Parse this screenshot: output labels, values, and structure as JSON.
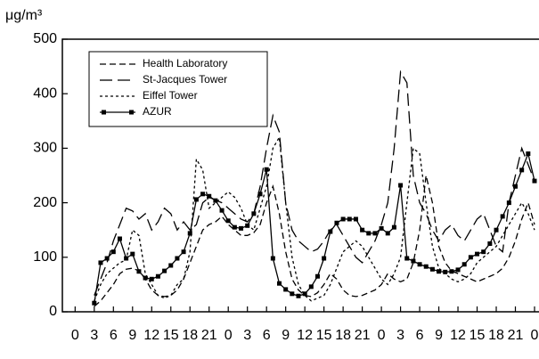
{
  "chart_data": {
    "type": "line",
    "y_label": "μg/m³",
    "x": [
      3,
      4,
      5,
      6,
      7,
      8,
      9,
      10,
      11,
      12,
      13,
      14,
      15,
      16,
      17,
      18,
      19,
      20,
      21,
      22,
      23,
      24,
      25,
      26,
      27,
      28,
      29,
      30,
      31,
      32,
      33,
      34,
      35,
      36,
      37,
      38,
      39,
      40,
      41,
      42,
      43,
      44,
      45,
      46,
      47,
      48,
      49,
      50,
      51,
      52,
      53,
      54,
      55,
      56,
      57,
      58,
      59,
      60,
      61,
      62,
      63,
      64,
      65,
      66,
      67,
      68,
      69,
      70,
      71,
      72
    ],
    "series": [
      {
        "name": "Health Laboratory",
        "color": "#000000",
        "dash": "7,4",
        "marker": false,
        "values": [
          10,
          20,
          35,
          50,
          70,
          78,
          80,
          75,
          60,
          40,
          30,
          28,
          30,
          40,
          60,
          90,
          120,
          150,
          160,
          165,
          175,
          160,
          150,
          140,
          140,
          145,
          160,
          200,
          230,
          180,
          110,
          60,
          40,
          30,
          28,
          35,
          50,
          70,
          60,
          40,
          30,
          28,
          30,
          35,
          40,
          50,
          70,
          60,
          55,
          60,
          90,
          150,
          250,
          200,
          120,
          90,
          75,
          70,
          65,
          60,
          55,
          60,
          65,
          70,
          80,
          100,
          130,
          170,
          200,
          160
        ]
      },
      {
        "name": "St-Jacques Tower",
        "color": "#000000",
        "dash": "14,6",
        "marker": false,
        "values": [
          30,
          60,
          90,
          130,
          160,
          190,
          185,
          170,
          180,
          150,
          165,
          190,
          180,
          150,
          165,
          150,
          160,
          200,
          210,
          205,
          200,
          190,
          180,
          170,
          165,
          180,
          230,
          300,
          360,
          330,
          200,
          150,
          130,
          120,
          110,
          115,
          130,
          150,
          160,
          140,
          120,
          100,
          90,
          110,
          130,
          160,
          200,
          300,
          440,
          420,
          250,
          200,
          180,
          150,
          130,
          150,
          160,
          140,
          130,
          150,
          170,
          180,
          150,
          120,
          110,
          200,
          250,
          300,
          270,
          240
        ]
      },
      {
        "name": "Eiffel Tower",
        "color": "#000000",
        "dash": "3,3",
        "marker": false,
        "values": [
          20,
          50,
          70,
          80,
          90,
          95,
          150,
          140,
          70,
          50,
          30,
          25,
          30,
          50,
          60,
          110,
          280,
          260,
          190,
          200,
          210,
          220,
          210,
          190,
          160,
          150,
          190,
          230,
          300,
          320,
          200,
          100,
          50,
          30,
          20,
          25,
          30,
          50,
          80,
          110,
          120,
          130,
          120,
          100,
          80,
          60,
          50,
          70,
          100,
          200,
          300,
          290,
          200,
          120,
          80,
          70,
          60,
          55,
          60,
          70,
          90,
          100,
          110,
          120,
          140,
          160,
          180,
          200,
          180,
          150
        ]
      },
      {
        "name": "AZUR",
        "color": "#000000",
        "dash": "none",
        "marker": true,
        "values": [
          16,
          90,
          98,
          110,
          134,
          98,
          106,
          74,
          62,
          60,
          65,
          75,
          85,
          98,
          110,
          144,
          206,
          216,
          212,
          204,
          186,
          167,
          155,
          153,
          158,
          180,
          216,
          261,
          98,
          52,
          41,
          33,
          29,
          33,
          46,
          65,
          98,
          147,
          163,
          170,
          170,
          170,
          150,
          144,
          144,
          153,
          144,
          155,
          232,
          98,
          93,
          87,
          83,
          78,
          74,
          73,
          74,
          77,
          87,
          100,
          106,
          110,
          125,
          150,
          175,
          200,
          230,
          260,
          290,
          240
        ]
      }
    ],
    "xlim": [
      -2,
      72.7
    ],
    "xticks": [
      {
        "value": 0,
        "label": "0"
      },
      {
        "value": 3,
        "label": "3"
      },
      {
        "value": 6,
        "label": "6"
      },
      {
        "value": 9,
        "label": "9"
      },
      {
        "value": 12,
        "label": "12"
      },
      {
        "value": 15,
        "label": "15"
      },
      {
        "value": 18,
        "label": "18"
      },
      {
        "value": 21,
        "label": "21"
      },
      {
        "value": 24,
        "label": "0"
      },
      {
        "value": 27,
        "label": "3"
      },
      {
        "value": 30,
        "label": "6"
      },
      {
        "value": 33,
        "label": "9"
      },
      {
        "value": 36,
        "label": "12"
      },
      {
        "value": 39,
        "label": "15"
      },
      {
        "value": 42,
        "label": "18"
      },
      {
        "value": 45,
        "label": "21"
      },
      {
        "value": 48,
        "label": "0"
      },
      {
        "value": 51,
        "label": "3"
      },
      {
        "value": 54,
        "label": "6"
      },
      {
        "value": 57,
        "label": "9"
      },
      {
        "value": 60,
        "label": "12"
      },
      {
        "value": 63,
        "label": "15"
      },
      {
        "value": 66,
        "label": "18"
      },
      {
        "value": 69,
        "label": "21"
      },
      {
        "value": 72,
        "label": "0"
      }
    ],
    "ylim": [
      0,
      500
    ],
    "yticks": [
      0,
      100,
      200,
      300,
      400,
      500
    ],
    "legend": "upper left",
    "grid": false
  }
}
